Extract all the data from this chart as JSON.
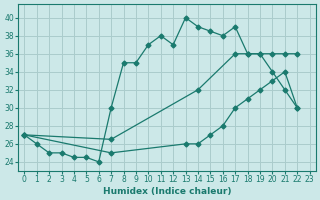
{
  "xlabel": "Humidex (Indice chaleur)",
  "bg_color": "#cce8e8",
  "grid_color": "#aacccc",
  "line_color": "#1a7a6e",
  "xlim": [
    -0.5,
    23.5
  ],
  "ylim": [
    23.0,
    41.5
  ],
  "xticks": [
    0,
    1,
    2,
    3,
    4,
    5,
    6,
    7,
    8,
    9,
    10,
    11,
    12,
    13,
    14,
    15,
    16,
    17,
    18,
    19,
    20,
    21,
    22,
    23
  ],
  "yticks": [
    24,
    26,
    28,
    30,
    32,
    34,
    36,
    38,
    40
  ],
  "line1_x": [
    0,
    1,
    2,
    3,
    4,
    5,
    6,
    7,
    8,
    9,
    10,
    11,
    12,
    13,
    14,
    15,
    16,
    17,
    18,
    19,
    20,
    21,
    22
  ],
  "line1_y": [
    27,
    26,
    25,
    25,
    24.5,
    24.5,
    24,
    30,
    35,
    35,
    37,
    38,
    37,
    40,
    39,
    38.5,
    38,
    39,
    36,
    36,
    34,
    32,
    30
  ],
  "line2_x": [
    0,
    7,
    14,
    17,
    18,
    19,
    20,
    21,
    22
  ],
  "line2_y": [
    27,
    26.5,
    32,
    36,
    36,
    36,
    36,
    36,
    36
  ],
  "line3_x": [
    0,
    7,
    13,
    14,
    15,
    16,
    17,
    18,
    19,
    20,
    21,
    22
  ],
  "line3_y": [
    27,
    25,
    26,
    26,
    27,
    28,
    30,
    31,
    32,
    33,
    34,
    30
  ]
}
